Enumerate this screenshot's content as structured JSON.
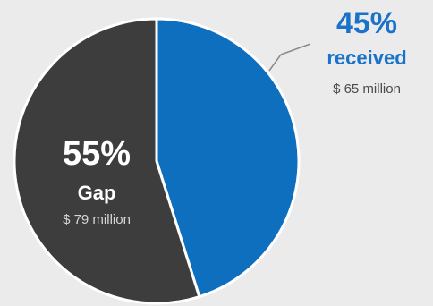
{
  "chart_data": {
    "type": "pie",
    "slices": [
      {
        "key": "received",
        "percent_label": "45%",
        "label": "received",
        "amount_label": "$ 65 million",
        "value": 65,
        "percent": 45,
        "color": "#0f6fbf",
        "text_color": "#1a73c8"
      },
      {
        "key": "gap",
        "percent_label": "55%",
        "label": "Gap",
        "amount_label": "$ 79 million",
        "value": 79,
        "percent": 55,
        "color": "#3d3d3d",
        "text_color": "#ffffff"
      }
    ]
  },
  "colors": {
    "background": "#ebebeb",
    "slice_border": "#ffffff",
    "leader_line": "#8a8a8a",
    "received_amount_text": "#4a4a4a",
    "gap_amount_text": "#d6d6d6"
  }
}
